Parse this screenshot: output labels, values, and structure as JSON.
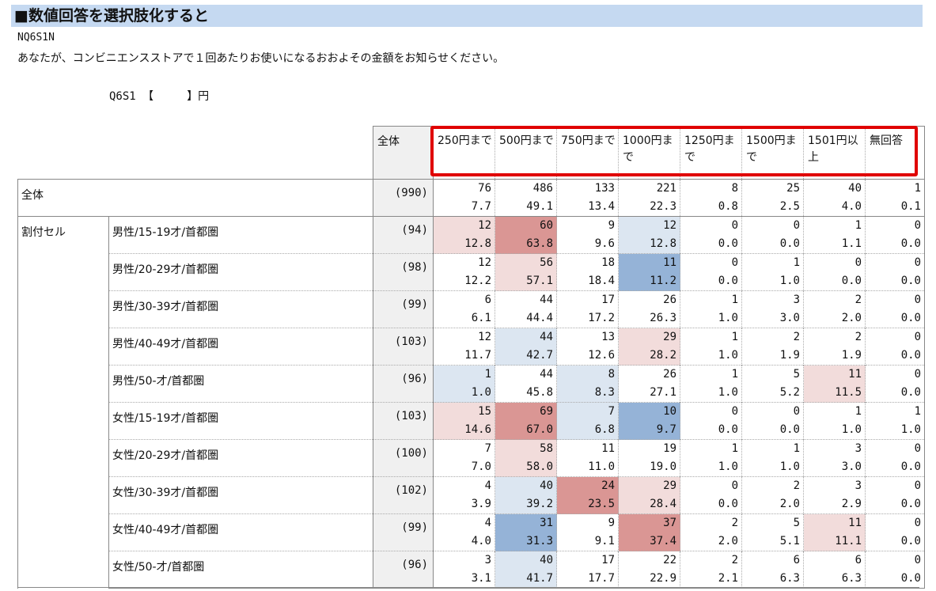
{
  "title": "■数値回答を選択肢化すると",
  "code": "NQ6S1N",
  "question": "あなたが、コンビニエンスストアで１回あたりお使いになるおおよその金額をお知らせください。",
  "qline": "Q6S1 【　　　】円",
  "header": {
    "total": "全体",
    "categories": [
      "250円まで",
      "500円まで",
      "750円まで",
      "1000円まで",
      "1250円まで",
      "1500円まで",
      "1501円以上",
      "無回答"
    ]
  },
  "total_row": {
    "label": "全体",
    "base": "(990)",
    "counts": [
      "76",
      "486",
      "133",
      "221",
      "8",
      "25",
      "40",
      "1"
    ],
    "pcts": [
      "7.7",
      "49.1",
      "13.4",
      "22.3",
      "0.8",
      "2.5",
      "4.0",
      "0.1"
    ]
  },
  "group_label": "割付セル",
  "rows": [
    {
      "label": "男性/15-19才/首都圏",
      "base": "(94)",
      "counts": [
        "12",
        "60",
        "9",
        "12",
        "0",
        "0",
        "1",
        "0"
      ],
      "pcts": [
        "12.8",
        "63.8",
        "9.6",
        "12.8",
        "0.0",
        "0.0",
        "1.1",
        "0.0"
      ],
      "shade": [
        "#f2dcdb",
        "#da9694",
        "",
        "#dce6f1",
        "",
        "",
        "",
        ""
      ]
    },
    {
      "label": "男性/20-29才/首都圏",
      "base": "(98)",
      "counts": [
        "12",
        "56",
        "18",
        "11",
        "0",
        "1",
        "0",
        "0"
      ],
      "pcts": [
        "12.2",
        "57.1",
        "18.4",
        "11.2",
        "0.0",
        "1.0",
        "0.0",
        "0.0"
      ],
      "shade": [
        "",
        "#f2dcdb",
        "",
        "#95b3d7",
        "",
        "",
        "",
        ""
      ]
    },
    {
      "label": "男性/30-39才/首都圏",
      "base": "(99)",
      "counts": [
        "6",
        "44",
        "17",
        "26",
        "1",
        "3",
        "2",
        "0"
      ],
      "pcts": [
        "6.1",
        "44.4",
        "17.2",
        "26.3",
        "1.0",
        "3.0",
        "2.0",
        "0.0"
      ],
      "shade": [
        "",
        "",
        "",
        "",
        "",
        "",
        "",
        ""
      ]
    },
    {
      "label": "男性/40-49才/首都圏",
      "base": "(103)",
      "counts": [
        "12",
        "44",
        "13",
        "29",
        "1",
        "2",
        "2",
        "0"
      ],
      "pcts": [
        "11.7",
        "42.7",
        "12.6",
        "28.2",
        "1.0",
        "1.9",
        "1.9",
        "0.0"
      ],
      "shade": [
        "",
        "#dce6f1",
        "",
        "#f2dcdb",
        "",
        "",
        "",
        ""
      ]
    },
    {
      "label": "男性/50-才/首都圏",
      "base": "(96)",
      "counts": [
        "1",
        "44",
        "8",
        "26",
        "1",
        "5",
        "11",
        "0"
      ],
      "pcts": [
        "1.0",
        "45.8",
        "8.3",
        "27.1",
        "1.0",
        "5.2",
        "11.5",
        "0.0"
      ],
      "shade": [
        "#dce6f1",
        "",
        "#dce6f1",
        "",
        "",
        "",
        "#f2dcdb",
        ""
      ]
    },
    {
      "label": "女性/15-19才/首都圏",
      "base": "(103)",
      "counts": [
        "15",
        "69",
        "7",
        "10",
        "0",
        "0",
        "1",
        "1"
      ],
      "pcts": [
        "14.6",
        "67.0",
        "6.8",
        "9.7",
        "0.0",
        "0.0",
        "1.0",
        "1.0"
      ],
      "shade": [
        "#f2dcdb",
        "#da9694",
        "#dce6f1",
        "#95b3d7",
        "",
        "",
        "",
        ""
      ]
    },
    {
      "label": "女性/20-29才/首都圏",
      "base": "(100)",
      "counts": [
        "7",
        "58",
        "11",
        "19",
        "1",
        "1",
        "3",
        "0"
      ],
      "pcts": [
        "7.0",
        "58.0",
        "11.0",
        "19.0",
        "1.0",
        "1.0",
        "3.0",
        "0.0"
      ],
      "shade": [
        "",
        "#f2dcdb",
        "",
        "",
        "",
        "",
        "",
        ""
      ]
    },
    {
      "label": "女性/30-39才/首都圏",
      "base": "(102)",
      "counts": [
        "4",
        "40",
        "24",
        "29",
        "0",
        "2",
        "3",
        "0"
      ],
      "pcts": [
        "3.9",
        "39.2",
        "23.5",
        "28.4",
        "0.0",
        "2.0",
        "2.9",
        "0.0"
      ],
      "shade": [
        "",
        "#dce6f1",
        "#da9694",
        "#f2dcdb",
        "",
        "",
        "",
        ""
      ]
    },
    {
      "label": "女性/40-49才/首都圏",
      "base": "(99)",
      "counts": [
        "4",
        "31",
        "9",
        "37",
        "2",
        "5",
        "11",
        "0"
      ],
      "pcts": [
        "4.0",
        "31.3",
        "9.1",
        "37.4",
        "2.0",
        "5.1",
        "11.1",
        "0.0"
      ],
      "shade": [
        "",
        "#95b3d7",
        "",
        "#da9694",
        "",
        "",
        "#f2dcdb",
        ""
      ]
    },
    {
      "label": "女性/50-才/首都圏",
      "base": "(96)",
      "counts": [
        "3",
        "40",
        "17",
        "22",
        "2",
        "6",
        "6",
        "0"
      ],
      "pcts": [
        "3.1",
        "41.7",
        "17.7",
        "22.9",
        "2.1",
        "6.3",
        "6.3",
        "0.0"
      ],
      "shade": [
        "",
        "#dce6f1",
        "",
        "",
        "",
        "",
        "",
        ""
      ]
    }
  ]
}
